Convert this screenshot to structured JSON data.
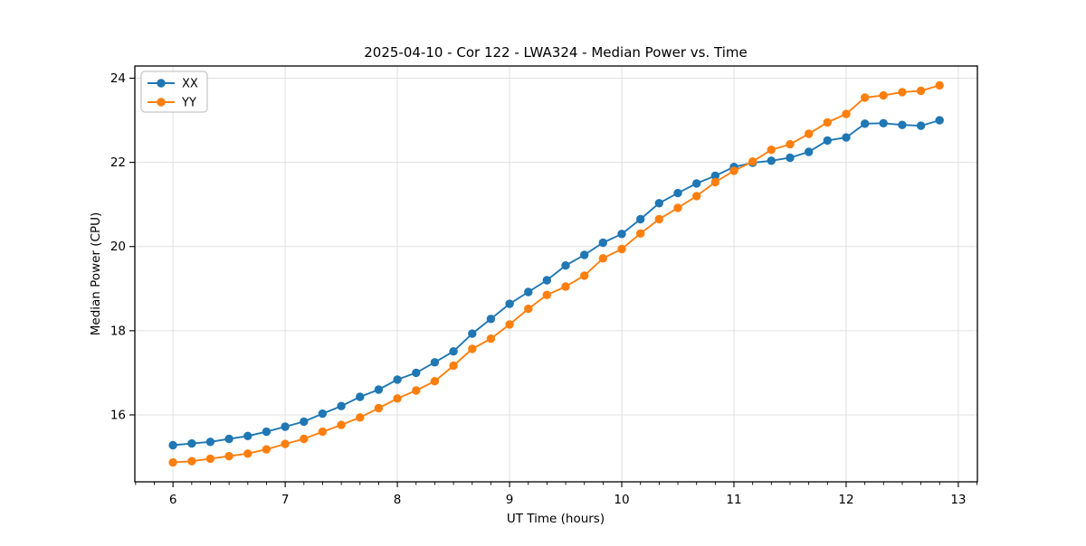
{
  "chart_data": {
    "type": "line",
    "title": "2025-04-10 - Cor 122 - LWA324 - Median Power vs. Time",
    "xlabel": "UT Time (hours)",
    "ylabel": "Median Power (CPU)",
    "xlim": [
      5.66,
      13.17
    ],
    "ylim": [
      14.41,
      24.29
    ],
    "xticks": [
      6,
      7,
      8,
      9,
      10,
      11,
      12,
      13
    ],
    "yticks": [
      16,
      18,
      20,
      22,
      24
    ],
    "x_minor_step": 0.16667,
    "grid": true,
    "legend_position": "upper-left",
    "background_color": "#ffffff",
    "grid_color": "#e0e0e0",
    "frame_color": "#000000",
    "x": [
      6.0,
      6.167,
      6.333,
      6.5,
      6.667,
      6.833,
      7.0,
      7.167,
      7.333,
      7.5,
      7.667,
      7.833,
      8.0,
      8.167,
      8.333,
      8.5,
      8.667,
      8.833,
      9.0,
      9.167,
      9.333,
      9.5,
      9.667,
      9.833,
      10.0,
      10.167,
      10.333,
      10.5,
      10.667,
      10.833,
      11.0,
      11.167,
      11.333,
      11.5,
      11.667,
      11.833,
      12.0,
      12.167,
      12.333,
      12.5,
      12.667,
      12.833
    ],
    "series": [
      {
        "name": "XX",
        "color": "#1f77b4",
        "values": [
          15.28,
          15.32,
          15.36,
          15.43,
          15.5,
          15.6,
          15.72,
          15.84,
          16.03,
          16.21,
          16.43,
          16.6,
          16.84,
          17.0,
          17.25,
          17.51,
          17.93,
          18.28,
          18.64,
          18.92,
          19.2,
          19.55,
          19.8,
          20.09,
          20.3,
          20.65,
          21.03,
          21.27,
          21.5,
          21.68,
          21.89,
          21.99,
          22.04,
          22.11,
          22.25,
          22.52,
          22.59,
          22.92,
          22.93,
          22.89,
          22.87,
          23.0
        ]
      },
      {
        "name": "YY",
        "color": "#ff7f0e",
        "values": [
          14.87,
          14.9,
          14.96,
          15.02,
          15.08,
          15.18,
          15.31,
          15.43,
          15.6,
          15.76,
          15.94,
          16.16,
          16.39,
          16.58,
          16.8,
          17.17,
          17.57,
          17.81,
          18.15,
          18.52,
          18.85,
          19.05,
          19.31,
          19.72,
          19.94,
          20.31,
          20.65,
          20.92,
          21.2,
          21.53,
          21.8,
          22.02,
          22.3,
          22.43,
          22.68,
          22.95,
          23.15,
          23.54,
          23.59,
          23.67,
          23.7,
          23.83
        ]
      }
    ]
  }
}
